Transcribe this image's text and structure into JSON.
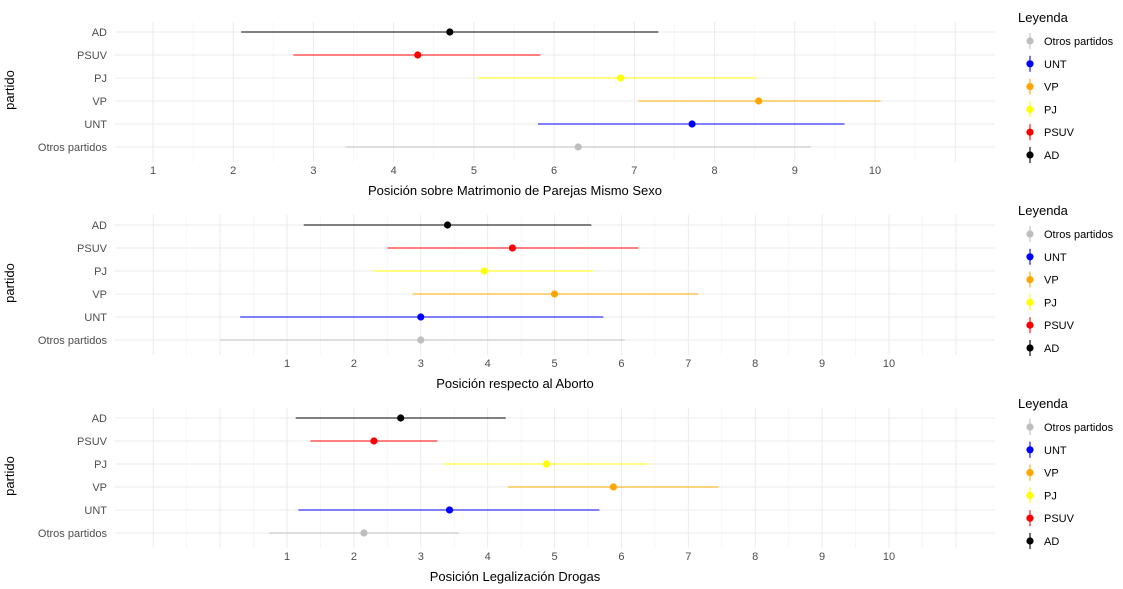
{
  "chart_data": [
    {
      "type": "errorbar-dot",
      "categories": [
        "Otros partidos",
        "UNT",
        "VP",
        "PJ",
        "PSUV",
        "AD"
      ],
      "points": [
        {
          "category": "AD",
          "estimate": 4.7,
          "low": 2.1,
          "high": 7.3
        },
        {
          "category": "PSUV",
          "estimate": 4.3,
          "low": 2.75,
          "high": 5.83
        },
        {
          "category": "PJ",
          "estimate": 6.83,
          "low": 5.05,
          "high": 8.52
        },
        {
          "category": "VP",
          "estimate": 8.55,
          "low": 7.05,
          "high": 10.07
        },
        {
          "category": "UNT",
          "estimate": 7.72,
          "low": 5.8,
          "high": 9.62
        },
        {
          "category": "Otros partidos",
          "estimate": 6.3,
          "low": 3.4,
          "high": 9.2
        }
      ],
      "xlabel": "Posición sobre Matrimonio de Parejas Mismo Sexo",
      "ylabel": "partido",
      "xticks": [
        1,
        2,
        3,
        4,
        5,
        6,
        7,
        8,
        9,
        10
      ],
      "xlim": [
        0.5,
        11.3
      ],
      "grid": true
    },
    {
      "type": "errorbar-dot",
      "categories": [
        "Otros partidos",
        "UNT",
        "VP",
        "PJ",
        "PSUV",
        "AD"
      ],
      "points": [
        {
          "category": "AD",
          "estimate": 3.4,
          "low": 1.25,
          "high": 5.55
        },
        {
          "category": "PSUV",
          "estimate": 4.37,
          "low": 2.5,
          "high": 6.25
        },
        {
          "category": "PJ",
          "estimate": 3.95,
          "low": 2.3,
          "high": 5.58
        },
        {
          "category": "VP",
          "estimate": 5.0,
          "low": 2.88,
          "high": 7.15
        },
        {
          "category": "UNT",
          "estimate": 3.0,
          "low": 0.3,
          "high": 5.73
        },
        {
          "category": "Otros partidos",
          "estimate": 3.0,
          "low": 0.0,
          "high": 6.05
        }
      ],
      "xlabel": "Posición respecto al Aborto",
      "ylabel": "partido",
      "xticks": [
        1,
        2,
        3,
        4,
        5,
        6,
        7,
        8,
        9,
        10
      ],
      "xlim": [
        -1.0,
        11.3
      ],
      "grid": true
    },
    {
      "type": "errorbar-dot",
      "categories": [
        "Otros partidos",
        "UNT",
        "VP",
        "PJ",
        "PSUV",
        "AD"
      ],
      "points": [
        {
          "category": "AD",
          "estimate": 2.7,
          "low": 1.13,
          "high": 4.27
        },
        {
          "category": "PSUV",
          "estimate": 2.3,
          "low": 1.35,
          "high": 3.25
        },
        {
          "category": "PJ",
          "estimate": 4.88,
          "low": 3.35,
          "high": 6.4
        },
        {
          "category": "VP",
          "estimate": 5.88,
          "low": 4.3,
          "high": 7.45
        },
        {
          "category": "UNT",
          "estimate": 3.43,
          "low": 1.17,
          "high": 5.67
        },
        {
          "category": "Otros partidos",
          "estimate": 2.15,
          "low": 0.73,
          "high": 3.57
        }
      ],
      "xlabel": "Posición Legalización Drogas",
      "ylabel": "partido",
      "xticks": [
        1,
        2,
        3,
        4,
        5,
        6,
        7,
        8,
        9,
        10
      ],
      "xlim": [
        -1.0,
        11.3
      ],
      "grid": true
    }
  ],
  "legend": {
    "title": "Leyenda",
    "position": "right",
    "items": [
      {
        "label": "Otros partidos",
        "color": "#bebebe"
      },
      {
        "label": "UNT",
        "color": "#0000ff"
      },
      {
        "label": "VP",
        "color": "#ffa500"
      },
      {
        "label": "PJ",
        "color": "#ffff00"
      },
      {
        "label": "PSUV",
        "color": "#ff0000"
      },
      {
        "label": "AD",
        "color": "#000000"
      }
    ]
  },
  "colors": {
    "AD": "#000000",
    "PSUV": "#ff0000",
    "PJ": "#ffff00",
    "VP": "#ffa500",
    "UNT": "#0000ff",
    "Otros partidos": "#bebebe",
    "grid_major": "#ebebeb",
    "grid_minor": "#f5f5f5",
    "tick_text": "#4d4d4d",
    "axis_title": "#000000"
  }
}
